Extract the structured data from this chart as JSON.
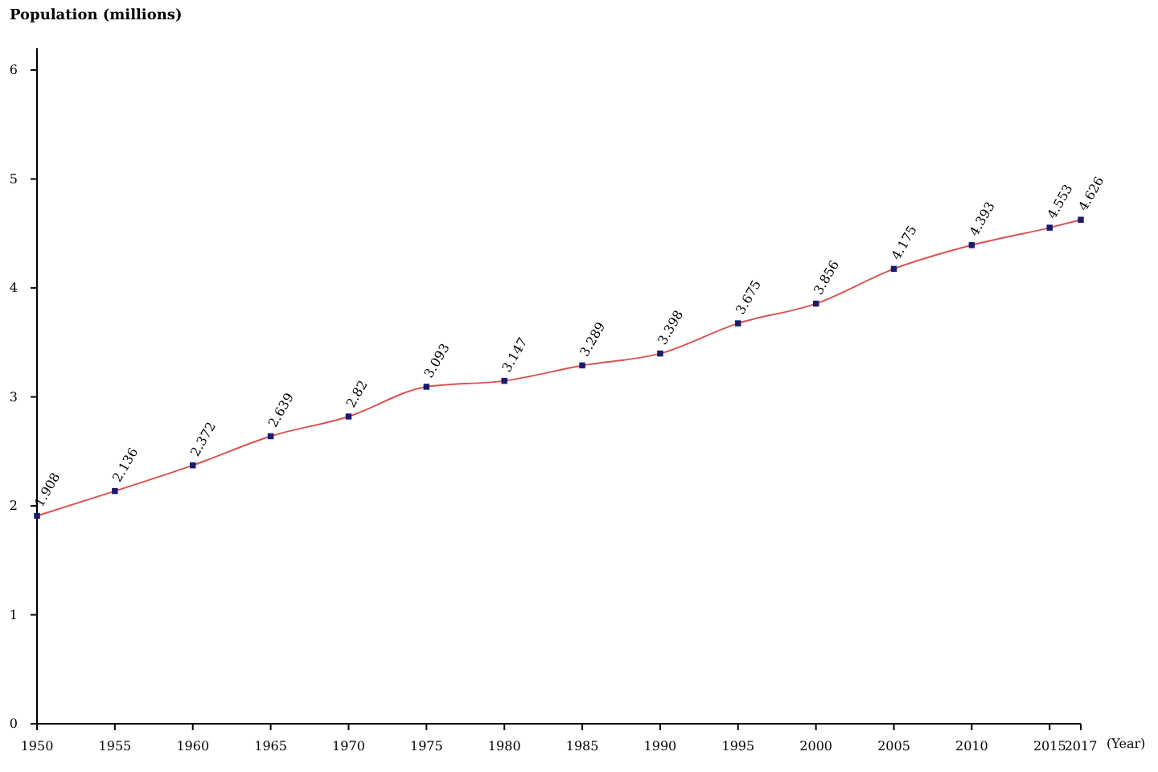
{
  "chart_data": {
    "type": "line",
    "ylabel": "Population (millions)",
    "xlabel": "(Year)",
    "x": [
      1950,
      1955,
      1960,
      1965,
      1970,
      1975,
      1980,
      1985,
      1990,
      1995,
      2000,
      2005,
      2010,
      2015,
      2017
    ],
    "series": [
      {
        "color": "#d9534f",
        "values": [
          1.908,
          2.136,
          2.372,
          2.639,
          2.82,
          3.093,
          3.147,
          3.289,
          3.398,
          3.675,
          3.856,
          4.175,
          4.393,
          4.553,
          4.626
        ]
      }
    ],
    "value_labels": [
      "1.908",
      "2.136",
      "2.372",
      "2.639",
      "2.82",
      "3.093",
      "3.147",
      "3.289",
      "3.398",
      "3.675",
      "3.856",
      "4.175",
      "4.393",
      "4.553",
      "4.626"
    ],
    "xlim": [
      1950,
      2017
    ],
    "xticks": [
      1950,
      1955,
      1960,
      1965,
      1970,
      1975,
      1980,
      1985,
      1990,
      1995,
      2000,
      2005,
      2010,
      2015,
      2017
    ],
    "ylim": [
      0,
      6.2
    ],
    "yticks": [
      0,
      1,
      2,
      3,
      4,
      5,
      6
    ],
    "marker": "square",
    "grid": false
  }
}
